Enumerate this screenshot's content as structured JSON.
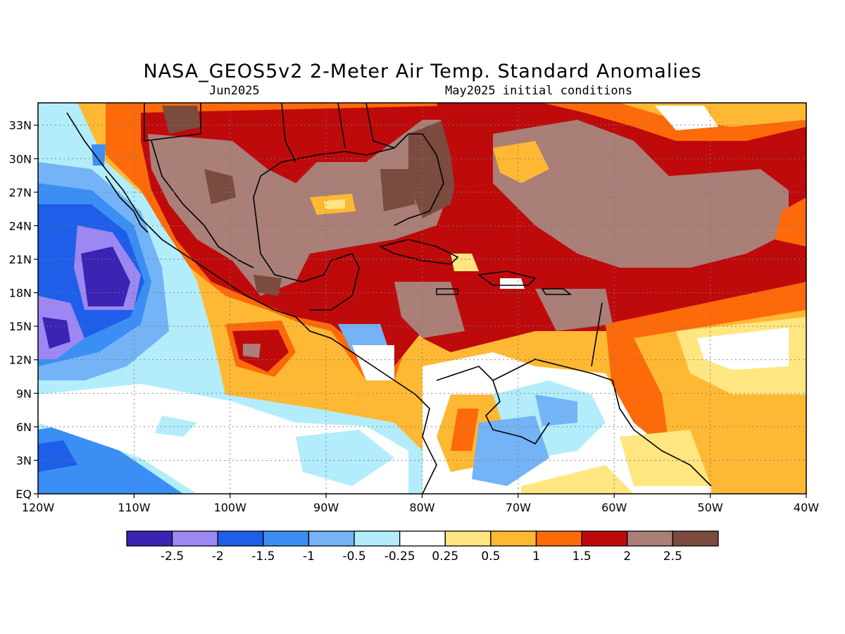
{
  "title": "NASA_GEOS5v2 2-Meter Air Temp. Standard Anomalies",
  "subtitle_left": "Jun2025",
  "subtitle_right": "May2025 initial conditions",
  "map": {
    "lon_range": [
      -120,
      -40
    ],
    "lat_range": [
      0,
      35
    ],
    "lat_labels": [
      "EQ",
      "3N",
      "6N",
      "9N",
      "12N",
      "15N",
      "18N",
      "21N",
      "24N",
      "27N",
      "30N",
      "33N"
    ],
    "lon_labels": [
      "120W",
      "110W",
      "100W",
      "90W",
      "80W",
      "70W",
      "60W",
      "50W",
      "40W"
    ],
    "gridlines": "dotted"
  },
  "colorbar": {
    "colors": [
      "#3b23b4",
      "#9d87f2",
      "#1f5ee8",
      "#3b8ef4",
      "#74b3f6",
      "#b3edfb",
      "#ffffff",
      "#ffe681",
      "#ffb833",
      "#fd6a0a",
      "#bf0a0b",
      "#a97f78",
      "#7a4b3e"
    ],
    "labels": [
      "-2.5",
      "-2",
      "-1.5",
      "-1",
      "-0.5",
      "-0.25",
      "0.25",
      "0.5",
      "1",
      "1.5",
      "2",
      "2.5"
    ]
  }
}
